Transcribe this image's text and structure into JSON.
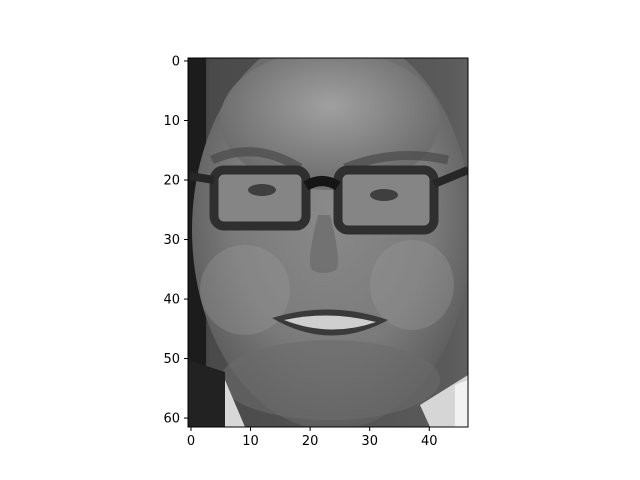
{
  "figure": {
    "background": "#ffffff",
    "image_description_colormap": "gray"
  },
  "image": {
    "rows": 62,
    "cols": 47,
    "colormap": "gray"
  },
  "axes": {
    "x_ticks": [
      "0",
      "10",
      "20",
      "30",
      "40"
    ],
    "y_ticks": [
      "0",
      "10",
      "20",
      "30",
      "40",
      "50",
      "60"
    ],
    "x_range": [
      -0.5,
      46.5
    ],
    "y_range": [
      61.5,
      -0.5
    ]
  }
}
